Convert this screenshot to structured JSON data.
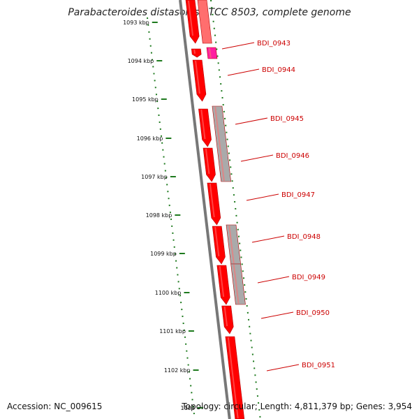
{
  "title": "Parabacteroides distasonis ATCC 8503, complete genome",
  "footer": {
    "accession": "Accession: NC_009615",
    "topology": "Topology: circular; Length: 4,811,379 bp; Genes: 3,954"
  },
  "colors": {
    "gene_forward": "#ff0000",
    "gene_forward_light": "#ff6e6e",
    "gene_gray": "#aaaaaa",
    "gene_magenta": "#ff1ea0",
    "label": "#cc0000",
    "tick": "#1e7a1e",
    "backbone": "#777777"
  },
  "kbp_ticks": [
    "1093 kbp",
    "1094 kbp",
    "1095 kbp",
    "1096 kbp",
    "1097 kbp",
    "1098 kbp",
    "1099 kbp",
    "1100 kbp",
    "1101 kbp",
    "1102 kbp",
    "1103"
  ],
  "gene_labels": [
    "BDI_0943",
    "BDI_0944",
    "BDI_0945",
    "BDI_0946",
    "BDI_0947",
    "BDI_0948",
    "BDI_0949",
    "BDI_0950",
    "BDI_0951"
  ]
}
